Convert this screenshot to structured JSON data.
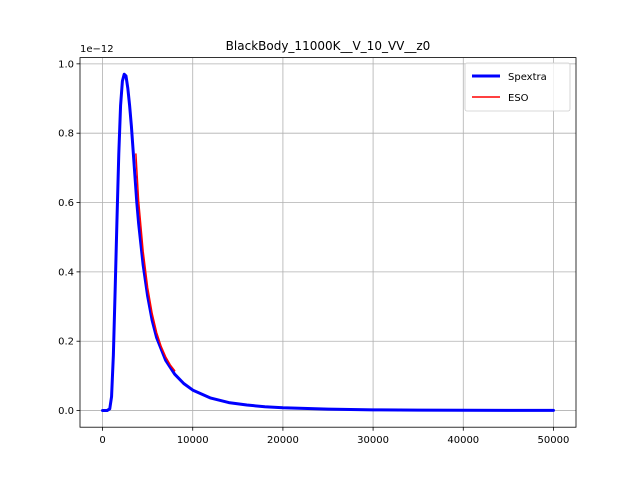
{
  "chart_data": {
    "type": "line",
    "title": "BlackBody_11000K__V_10_VV__z0",
    "xlabel": "",
    "ylabel": "",
    "y_offset_label": "1e−12",
    "xlim": [
      -2500,
      52500
    ],
    "ylim": [
      -0.048,
      1.018
    ],
    "x_ticks": [
      0,
      10000,
      20000,
      30000,
      40000,
      50000
    ],
    "x_tick_labels": [
      "0",
      "10000",
      "20000",
      "30000",
      "40000",
      "50000"
    ],
    "y_ticks": [
      0.0,
      0.2,
      0.4,
      0.6,
      0.8,
      1.0
    ],
    "y_tick_labels": [
      "0.0",
      "0.2",
      "0.4",
      "0.6",
      "0.8",
      "1.0"
    ],
    "grid": true,
    "legend_position": "top-right",
    "series": [
      {
        "name": "Spextra",
        "color": "#0000ff",
        "x": [
          0,
          500,
          800,
          1000,
          1200,
          1400,
          1600,
          1800,
          2000,
          2200,
          2400,
          2600,
          2800,
          3000,
          3200,
          3500,
          3800,
          4000,
          4500,
          5000,
          5500,
          6000,
          7000,
          8000,
          9000,
          10000,
          12000,
          14000,
          16000,
          18000,
          20000,
          25000,
          30000,
          35000,
          40000,
          45000,
          50000
        ],
        "values": [
          0.0,
          0.0,
          0.005,
          0.04,
          0.16,
          0.35,
          0.55,
          0.74,
          0.88,
          0.95,
          0.97,
          0.965,
          0.93,
          0.88,
          0.82,
          0.71,
          0.6,
          0.54,
          0.42,
          0.33,
          0.26,
          0.21,
          0.145,
          0.105,
          0.078,
          0.059,
          0.036,
          0.023,
          0.016,
          0.011,
          0.008,
          0.004,
          0.002,
          0.0012,
          0.0008,
          0.0005,
          0.0004
        ]
      },
      {
        "name": "ESO",
        "color": "#ff0000",
        "x": [
          3700,
          4000,
          4500,
          5000,
          5500,
          6000,
          6500,
          7000,
          7500,
          8000
        ],
        "values": [
          0.74,
          0.605,
          0.46,
          0.355,
          0.28,
          0.225,
          0.185,
          0.155,
          0.132,
          0.115
        ]
      }
    ]
  }
}
